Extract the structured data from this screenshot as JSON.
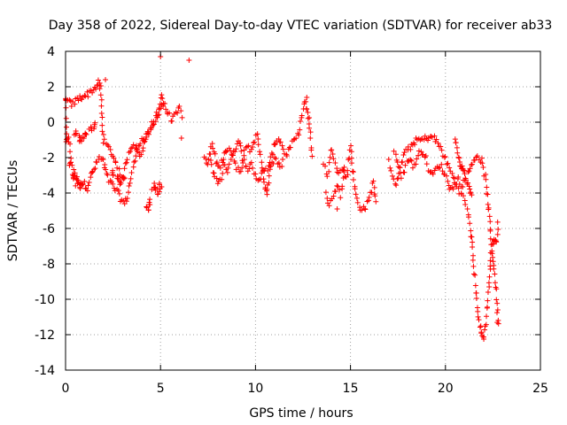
{
  "chart_data": {
    "type": "scatter",
    "title": "Day 358 of 2022, Sidereal Day-to-day VTEC variation (SDTVAR) for receiver ab33",
    "xlabel": "GPS time / hours",
    "ylabel": "SDTVAR / TECUs",
    "xlim": [
      0,
      25
    ],
    "ylim": [
      -14,
      4
    ],
    "xticks": [
      "0",
      "5",
      "10",
      "15",
      "20",
      "25"
    ],
    "yticks": [
      "4",
      "2",
      "0",
      "-2",
      "-4",
      "-6",
      "-8",
      "-10",
      "-12",
      "-14"
    ],
    "grid": true,
    "marker": "+",
    "color": "#ff0000",
    "series": [
      {
        "name": "SDTVAR",
        "trace": [
          [
            0.0,
            1.4
          ],
          [
            0.05,
            -1.2
          ],
          [
            0.15,
            -0.8
          ],
          [
            0.3,
            -2.2
          ],
          [
            0.45,
            -2.9
          ],
          [
            0.6,
            -3.2
          ],
          [
            0.8,
            -3.4
          ],
          [
            1.0,
            -3.5
          ],
          [
            1.15,
            -3.7
          ],
          [
            1.3,
            -3.1
          ],
          [
            1.45,
            -2.8
          ],
          [
            1.6,
            -2.4
          ],
          [
            1.8,
            -2.0
          ],
          [
            2.0,
            -2.2
          ],
          [
            2.1,
            -2.8
          ],
          [
            2.3,
            -3.3
          ],
          [
            2.5,
            -3.6
          ],
          [
            2.7,
            -3.9
          ],
          [
            2.9,
            -4.3
          ],
          [
            3.1,
            -4.6
          ],
          [
            3.25,
            -4.2
          ],
          [
            3.4,
            -3.4
          ],
          [
            3.55,
            -2.6
          ],
          [
            3.7,
            -1.9
          ],
          [
            3.85,
            -1.3
          ],
          [
            4.0,
            -1.0
          ],
          [
            4.2,
            -0.9
          ],
          [
            4.4,
            -0.6
          ],
          [
            4.6,
            -0.3
          ],
          [
            4.8,
            0.2
          ],
          [
            4.95,
            0.8
          ],
          [
            5.05,
            1.6
          ],
          [
            5.2,
            0.9
          ],
          [
            5.4,
            0.5
          ],
          [
            5.6,
            0.1
          ],
          [
            5.8,
            0.4
          ],
          [
            6.0,
            0.8
          ],
          [
            6.2,
            0.2
          ]
        ],
        "trace_top": [
          [
            0.0,
            1.2
          ],
          [
            0.2,
            1.1
          ],
          [
            0.4,
            1.0
          ],
          [
            0.6,
            1.3
          ],
          [
            0.8,
            1.4
          ],
          [
            1.0,
            1.5
          ],
          [
            1.2,
            1.6
          ],
          [
            1.4,
            1.8
          ],
          [
            1.6,
            2.0
          ],
          [
            1.75,
            2.2
          ],
          [
            1.85,
            1.9
          ],
          [
            1.9,
            0.5
          ],
          [
            2.0,
            -1.0
          ],
          [
            2.2,
            -1.4
          ],
          [
            2.4,
            -1.7
          ],
          [
            2.6,
            -2.2
          ],
          [
            2.8,
            -2.6
          ],
          [
            3.0,
            -3.3
          ],
          [
            3.1,
            -3.0
          ],
          [
            3.2,
            -2.2
          ],
          [
            3.4,
            -1.5
          ],
          [
            3.6,
            -1.2
          ],
          [
            3.8,
            -1.6
          ],
          [
            4.0,
            -1.9
          ],
          [
            4.2,
            -1.0
          ],
          [
            4.4,
            -0.4
          ],
          [
            4.6,
            0.0
          ],
          [
            4.8,
            0.4
          ],
          [
            5.0,
            0.8
          ],
          [
            5.2,
            1.2
          ]
        ],
        "trace_mid": [
          [
            0.5,
            -0.6
          ],
          [
            0.7,
            -0.9
          ],
          [
            0.9,
            -1.0
          ],
          [
            1.1,
            -0.6
          ],
          [
            1.3,
            -0.4
          ],
          [
            1.5,
            -0.2
          ],
          [
            0.2,
            -2.4
          ],
          [
            0.4,
            -3.1
          ],
          [
            0.6,
            -3.4
          ],
          [
            0.8,
            -3.6
          ],
          [
            2.5,
            -2.9
          ],
          [
            2.7,
            -3.0
          ],
          [
            2.9,
            -3.4
          ],
          [
            4.3,
            -4.9
          ],
          [
            4.45,
            -4.5
          ],
          [
            4.6,
            -3.6
          ],
          [
            4.75,
            -3.8
          ],
          [
            4.9,
            -3.9
          ],
          [
            5.0,
            -3.6
          ]
        ],
        "trace_b": [
          [
            7.3,
            -2.1
          ],
          [
            7.5,
            -2.4
          ],
          [
            7.7,
            -1.2
          ],
          [
            7.9,
            -2.2
          ],
          [
            8.1,
            -2.6
          ],
          [
            8.3,
            -2.1
          ],
          [
            8.5,
            -2.8
          ],
          [
            8.7,
            -2.1
          ],
          [
            8.9,
            -1.6
          ],
          [
            9.1,
            -0.9
          ],
          [
            9.3,
            -2.0
          ],
          [
            9.5,
            -1.3
          ],
          [
            9.7,
            -1.5
          ],
          [
            9.9,
            -1.1
          ],
          [
            10.1,
            -0.8
          ],
          [
            10.3,
            -2.2
          ],
          [
            10.5,
            -3.6
          ],
          [
            10.6,
            -4.2
          ],
          [
            10.8,
            -2.1
          ],
          [
            11.0,
            -1.2
          ],
          [
            11.2,
            -0.9
          ],
          [
            11.4,
            -1.3
          ],
          [
            11.6,
            -1.9
          ],
          [
            11.8,
            -1.5
          ],
          [
            12.0,
            -1.1
          ],
          [
            12.2,
            -0.8
          ],
          [
            12.6,
            1.2
          ],
          [
            12.7,
            0.6
          ],
          [
            12.8,
            0.2
          ],
          [
            13.0,
            -2.2
          ]
        ],
        "trace_b2": [
          [
            7.6,
            -1.8
          ],
          [
            7.8,
            -3.0
          ],
          [
            8.0,
            -3.4
          ],
          [
            8.2,
            -3.1
          ],
          [
            8.4,
            -1.6
          ],
          [
            8.6,
            -1.4
          ],
          [
            8.8,
            -1.9
          ],
          [
            9.0,
            -2.5
          ],
          [
            9.2,
            -2.9
          ],
          [
            9.4,
            -2.2
          ],
          [
            9.6,
            -2.6
          ],
          [
            9.8,
            -2.4
          ],
          [
            10.0,
            -3.0
          ],
          [
            10.2,
            -3.3
          ],
          [
            10.4,
            -2.7
          ],
          [
            10.7,
            -2.6
          ],
          [
            10.9,
            -2.4
          ],
          [
            11.1,
            -2.0
          ],
          [
            11.3,
            -2.6
          ],
          [
            11.5,
            -1.9
          ]
        ],
        "trace_c": [
          [
            13.6,
            -2.4
          ],
          [
            13.8,
            -3.0
          ],
          [
            14.0,
            -1.4
          ],
          [
            14.2,
            -2.2
          ],
          [
            14.4,
            -2.9
          ],
          [
            14.6,
            -2.6
          ],
          [
            14.8,
            -3.2
          ],
          [
            15.0,
            -1.3
          ],
          [
            15.2,
            -3.6
          ],
          [
            15.4,
            -4.6
          ],
          [
            15.6,
            -4.9
          ],
          [
            15.8,
            -4.8
          ],
          [
            16.0,
            -4.3
          ],
          [
            16.2,
            -3.3
          ],
          [
            16.4,
            -4.9
          ],
          [
            13.7,
            -4.1
          ],
          [
            13.9,
            -4.6
          ],
          [
            14.3,
            -3.6
          ],
          [
            14.5,
            -4.1
          ],
          [
            14.7,
            -2.4
          ]
        ],
        "trace_d": [
          [
            17.0,
            -2.2
          ],
          [
            17.2,
            -2.9
          ],
          [
            17.4,
            -3.6
          ],
          [
            17.6,
            -2.6
          ],
          [
            17.8,
            -1.9
          ],
          [
            18.0,
            -1.6
          ],
          [
            18.2,
            -1.3
          ],
          [
            18.4,
            -1.1
          ],
          [
            18.6,
            -1.0
          ],
          [
            18.8,
            -1.0
          ],
          [
            19.0,
            -0.9
          ],
          [
            19.2,
            -0.8
          ],
          [
            19.4,
            -0.9
          ],
          [
            19.6,
            -1.2
          ],
          [
            19.8,
            -1.6
          ],
          [
            20.0,
            -2.1
          ],
          [
            20.2,
            -2.6
          ],
          [
            20.4,
            -3.1
          ],
          [
            20.6,
            -3.6
          ],
          [
            20.8,
            -4.0
          ],
          [
            21.0,
            -4.4
          ],
          [
            21.2,
            -5.2
          ],
          [
            21.4,
            -6.6
          ],
          [
            21.5,
            -8.1
          ],
          [
            21.6,
            -9.5
          ],
          [
            21.7,
            -10.6
          ],
          [
            21.8,
            -11.5
          ],
          [
            21.9,
            -12.0
          ],
          [
            22.0,
            -12.2
          ],
          [
            22.1,
            -11.6
          ],
          [
            22.2,
            -10.3
          ],
          [
            22.3,
            -9.0
          ],
          [
            22.4,
            -7.5
          ],
          [
            22.5,
            -6.8
          ],
          [
            22.6,
            -6.6
          ],
          [
            22.7,
            -6.7
          ],
          [
            22.8,
            -5.3
          ]
        ],
        "trace_d2": [
          [
            17.3,
            -1.8
          ],
          [
            17.5,
            -2.1
          ],
          [
            17.7,
            -3.2
          ],
          [
            17.9,
            -2.4
          ],
          [
            18.1,
            -2.0
          ],
          [
            18.3,
            -2.5
          ],
          [
            18.5,
            -2.1
          ],
          [
            18.7,
            -1.6
          ],
          [
            18.9,
            -1.8
          ],
          [
            19.1,
            -2.6
          ],
          [
            19.3,
            -3.0
          ],
          [
            19.5,
            -2.7
          ],
          [
            19.7,
            -2.4
          ],
          [
            19.9,
            -2.8
          ],
          [
            20.1,
            -3.3
          ],
          [
            20.3,
            -3.8
          ],
          [
            20.5,
            -3.5
          ],
          [
            20.7,
            -3.2
          ],
          [
            20.9,
            -3.6
          ],
          [
            21.1,
            -3.1
          ],
          [
            21.3,
            -2.6
          ],
          [
            21.5,
            -2.1
          ],
          [
            21.7,
            -1.9
          ],
          [
            21.9,
            -2.2
          ],
          [
            22.1,
            -3.1
          ],
          [
            22.2,
            -4.2
          ],
          [
            22.3,
            -5.4
          ],
          [
            22.4,
            -6.6
          ],
          [
            22.5,
            -7.8
          ],
          [
            22.6,
            -8.6
          ],
          [
            22.7,
            -9.9
          ],
          [
            22.75,
            -11.2
          ],
          [
            22.8,
            -11.4
          ]
        ],
        "trace_d3": [
          [
            20.5,
            -0.8
          ],
          [
            20.6,
            -1.4
          ],
          [
            20.7,
            -2.1
          ],
          [
            20.8,
            -2.4
          ],
          [
            20.9,
            -2.6
          ],
          [
            21.0,
            -3.0
          ],
          [
            21.2,
            -3.5
          ],
          [
            21.3,
            -4.0
          ],
          [
            21.4,
            -4.3
          ]
        ]
      }
    ],
    "outliers": [
      [
        5.0,
        3.7
      ],
      [
        6.5,
        3.5
      ],
      [
        12.7,
        1.4
      ],
      [
        14.3,
        -4.9
      ],
      [
        6.1,
        -0.9
      ],
      [
        2.1,
        2.4
      ]
    ]
  }
}
